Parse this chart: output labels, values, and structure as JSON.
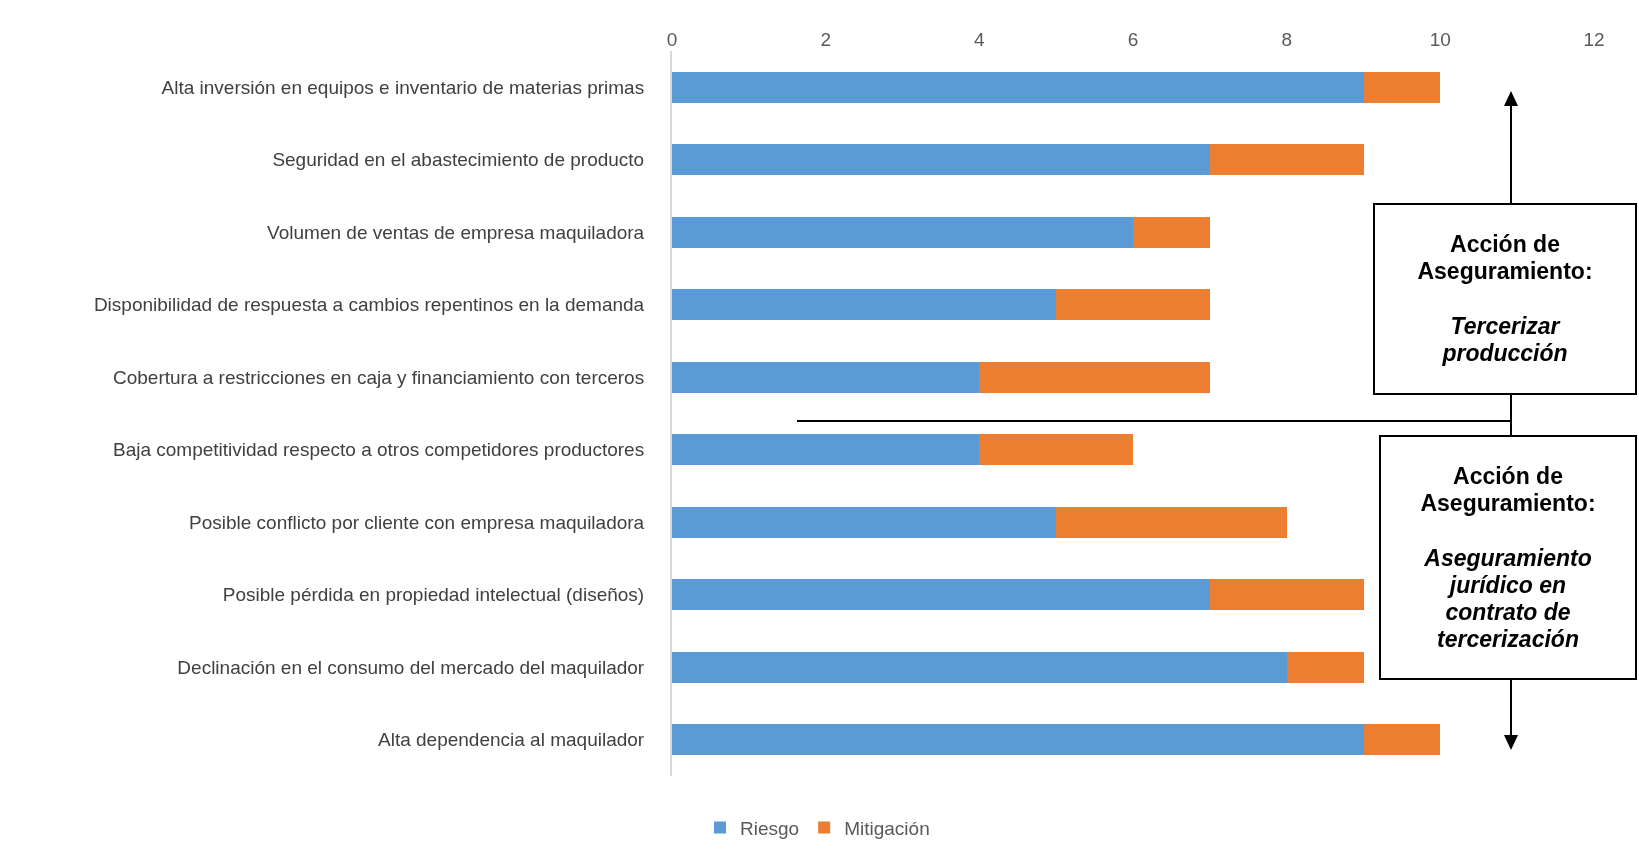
{
  "chart_data": {
    "type": "bar",
    "orientation": "horizontal",
    "stacked": true,
    "categories": [
      "Alta inversión en equipos e inventario de materias primas",
      "Seguridad en el abastecimiento de producto",
      "Volumen de ventas de empresa maquiladora",
      "Disponibilidad de respuesta a cambios repentinos en la demanda",
      "Cobertura a restricciones en caja y financiamiento con terceros",
      "Baja competitividad respecto a otros competidores productores",
      "Posible conflicto por cliente con empresa maquiladora",
      "Posible pérdida en propiedad intelectual (diseños)",
      "Declinación en el consumo del mercado del maquilador",
      "Alta dependencia al maquilador"
    ],
    "series": [
      {
        "name": "Riesgo",
        "color": "#5b9bd5",
        "values": [
          9,
          7,
          6,
          5,
          4,
          4,
          5,
          7,
          8,
          9
        ]
      },
      {
        "name": "Mitigación",
        "color": "#ed7d31",
        "values": [
          1,
          2,
          1,
          2,
          3,
          2,
          3,
          2,
          1,
          1
        ]
      }
    ],
    "xlim": [
      0,
      12
    ],
    "xticks": [
      0,
      2,
      4,
      6,
      8,
      10,
      12
    ],
    "grid": false,
    "legend": "bottom",
    "annotations": [
      "Acción de Aseguramiento:",
      "Tercerizar producción",
      "Acción de Aseguramiento:",
      "Aseguramiento jurídico en contrato de tercerización"
    ]
  }
}
